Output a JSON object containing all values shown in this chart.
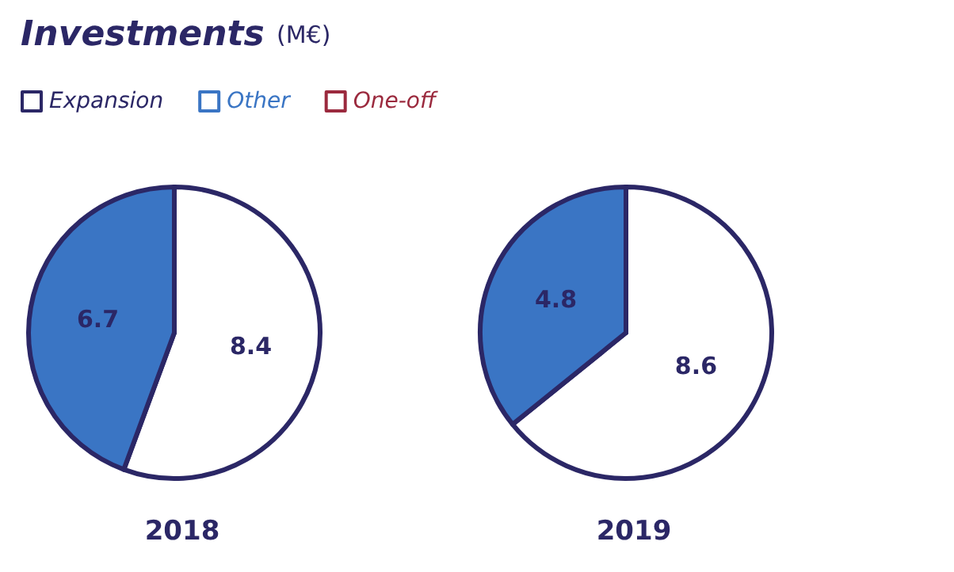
{
  "chart_data": {
    "type": "pie",
    "title": "Investments",
    "subtitle": "(M€)",
    "legend": "top left",
    "data_labels": true,
    "categories": [
      "Expansion",
      "Other",
      "One-off"
    ],
    "colors": [
      "#2b2766",
      "#3a75c4",
      "#9b2a3e"
    ],
    "series": [
      {
        "name": "2018",
        "values": [
          8.4,
          6.7,
          0
        ]
      },
      {
        "name": "2019",
        "values": [
          8.6,
          4.8,
          0
        ]
      }
    ]
  }
}
